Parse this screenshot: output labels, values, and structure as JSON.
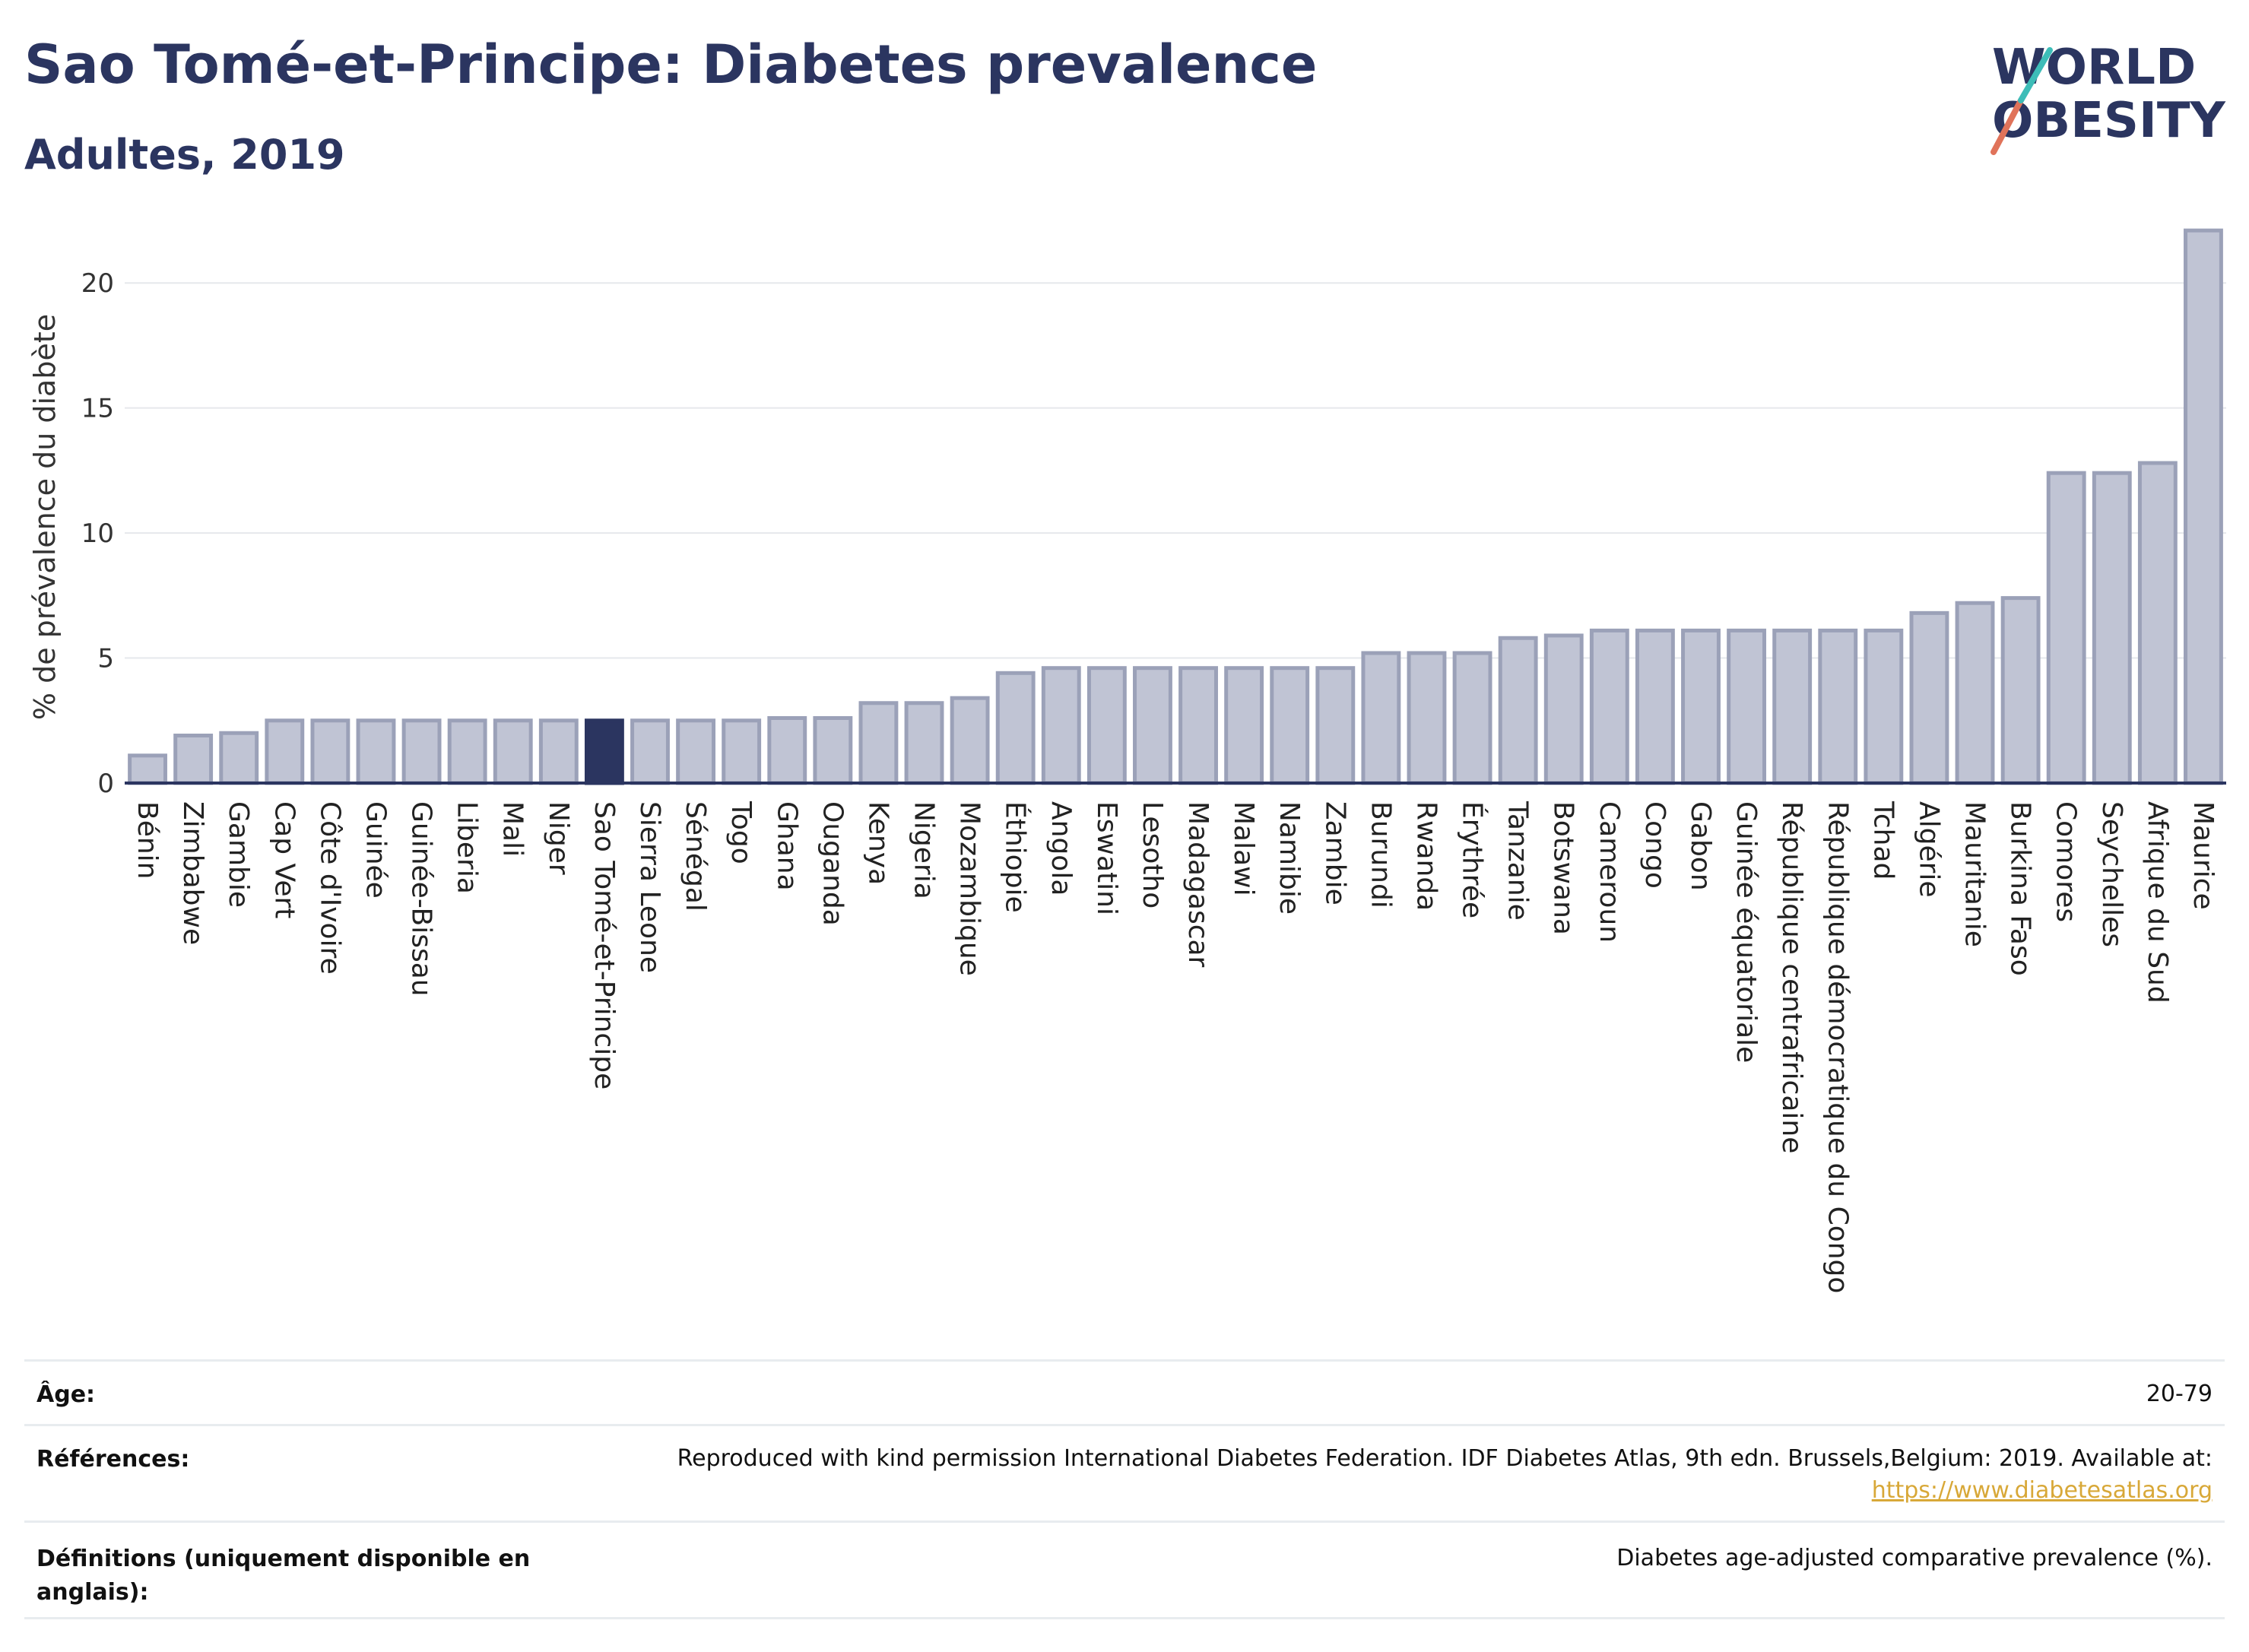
{
  "title": "Sao Tomé-et-Principe: Diabetes prevalence",
  "subtitle": "Adultes, 2019",
  "logo": {
    "line1": "WORLD",
    "line2": "OBESITY"
  },
  "colors": {
    "bar": "#c0c4d4",
    "bar_stroke": "#9ba1b8",
    "highlight": "#2b3560",
    "text": "#2b3560",
    "link": "#d8a838"
  },
  "chart_data": {
    "type": "bar",
    "ylabel": "% de prévalence du diabète",
    "ylim": [
      0,
      22.5
    ],
    "yticks": [
      0,
      5,
      10,
      15,
      20
    ],
    "highlight": "Sao Tomé-et-Principe",
    "categories": [
      "Bénin",
      "Zimbabwe",
      "Gambie",
      "Cap Vert",
      "Côte d'Ivoire",
      "Guinée",
      "Guinée-Bissau",
      "Liberia",
      "Mali",
      "Niger",
      "Sao Tomé-et-Principe",
      "Sierra Leone",
      "Sénégal",
      "Togo",
      "Ghana",
      "Ouganda",
      "Kenya",
      "Nigeria",
      "Mozambique",
      "Éthiopie",
      "Angola",
      "Eswatini",
      "Lesotho",
      "Madagascar",
      "Malawi",
      "Namibie",
      "Zambie",
      "Burundi",
      "Rwanda",
      "Érythrée",
      "Tanzanie",
      "Botswana",
      "Cameroun",
      "Congo",
      "Gabon",
      "Guinée équatoriale",
      "République centrafricaine",
      "République démocratique du Congo",
      "Tchad",
      "Algérie",
      "Mauritanie",
      "Burkina Faso",
      "Comores",
      "Seychelles",
      "Afrique du Sud",
      "Maurice"
    ],
    "values": [
      1.1,
      1.9,
      2.0,
      2.5,
      2.5,
      2.5,
      2.5,
      2.5,
      2.5,
      2.5,
      2.5,
      2.5,
      2.5,
      2.5,
      2.6,
      2.6,
      3.2,
      3.2,
      3.4,
      4.4,
      4.6,
      4.6,
      4.6,
      4.6,
      4.6,
      4.6,
      4.6,
      5.2,
      5.2,
      5.2,
      5.8,
      5.9,
      6.1,
      6.1,
      6.1,
      6.1,
      6.1,
      6.1,
      6.1,
      6.8,
      7.2,
      7.4,
      12.4,
      12.4,
      12.8,
      22.1
    ]
  },
  "info": {
    "age_label": "Âge:",
    "age_value": "20-79",
    "ref_label": "Références:",
    "ref_value": "Reproduced with kind permission International Diabetes Federation. IDF Diabetes Atlas, 9th edn. Brussels,Belgium: 2019. Available at:",
    "ref_link": "https://www.diabetesatlas.org",
    "def_label_1": "Définitions (uniquement disponible en",
    "def_label_2": "anglais):",
    "def_value": "Diabetes age-adjusted comparative prevalence (%)."
  }
}
